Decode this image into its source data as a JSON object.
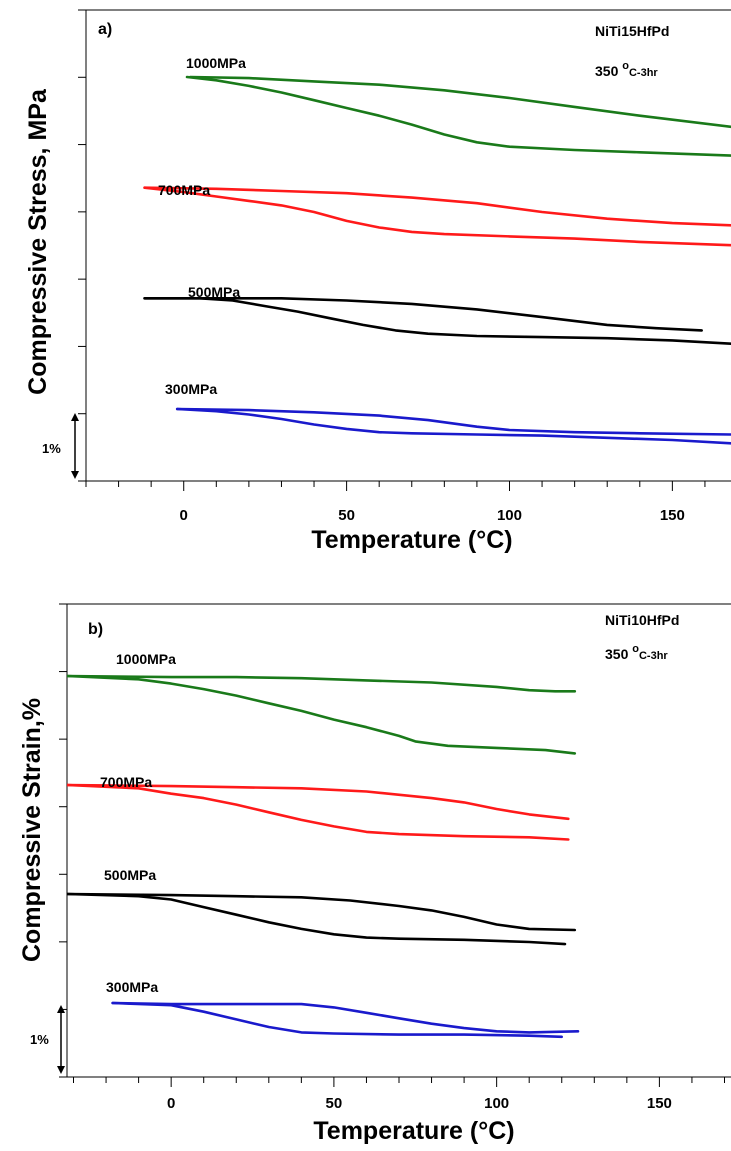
{
  "chart_data": [
    {
      "type": "line",
      "panel_label": "a)",
      "material": "NiTi15HfPd",
      "treatment": {
        "temp": "350",
        "deg": "o",
        "rest": "C-3hr"
      },
      "xlabel": "Temperature (°C)",
      "ylabel": "Compressive Stress, MPa",
      "xlim": [
        -30,
        168
      ],
      "xticks": [
        0,
        50,
        100,
        150
      ],
      "scale_bar_label": "1%",
      "series": [
        {
          "name": "1000MPa",
          "color": "#1a7a1a",
          "heating": [
            [
              2,
              90.0
            ],
            [
              20,
              89.9
            ],
            [
              40,
              89.6
            ],
            [
              60,
              89.3
            ],
            [
              80,
              88.8
            ],
            [
              100,
              88.1
            ],
            [
              120,
              87.3
            ],
            [
              140,
              86.5
            ],
            [
              168,
              85.5
            ]
          ],
          "cooling": [
            [
              1,
              90.0
            ],
            [
              10,
              89.7
            ],
            [
              20,
              89.2
            ],
            [
              30,
              88.6
            ],
            [
              40,
              87.9
            ],
            [
              50,
              87.2
            ],
            [
              60,
              86.5
            ],
            [
              70,
              85.7
            ],
            [
              80,
              84.8
            ],
            [
              90,
              84.1
            ],
            [
              100,
              83.7
            ],
            [
              120,
              83.4
            ],
            [
              140,
              83.2
            ],
            [
              168,
              82.9
            ]
          ]
        },
        {
          "name": "700MPa",
          "color": "#ff1a1a",
          "heating": [
            [
              -12,
              80.0
            ],
            [
              10,
              79.9
            ],
            [
              30,
              79.7
            ],
            [
              50,
              79.5
            ],
            [
              70,
              79.1
            ],
            [
              90,
              78.6
            ],
            [
              110,
              77.8
            ],
            [
              130,
              77.2
            ],
            [
              150,
              76.8
            ],
            [
              168,
              76.6
            ]
          ],
          "cooling": [
            [
              -12,
              80.0
            ],
            [
              0,
              79.6
            ],
            [
              10,
              79.2
            ],
            [
              20,
              78.8
            ],
            [
              30,
              78.4
            ],
            [
              40,
              77.8
            ],
            [
              50,
              77.0
            ],
            [
              60,
              76.4
            ],
            [
              70,
              76.0
            ],
            [
              80,
              75.8
            ],
            [
              100,
              75.6
            ],
            [
              120,
              75.4
            ],
            [
              140,
              75.1
            ],
            [
              168,
              74.8
            ]
          ]
        },
        {
          "name": "500MPa",
          "color": "#000000",
          "heating": [
            [
              -12,
              70.0
            ],
            [
              10,
              70.0
            ],
            [
              30,
              70.0
            ],
            [
              50,
              69.8
            ],
            [
              70,
              69.5
            ],
            [
              90,
              69.0
            ],
            [
              110,
              68.3
            ],
            [
              130,
              67.6
            ],
            [
              145,
              67.3
            ],
            [
              159,
              67.1
            ]
          ],
          "cooling": [
            [
              -12,
              70.0
            ],
            [
              5,
              70.0
            ],
            [
              15,
              69.8
            ],
            [
              25,
              69.3
            ],
            [
              35,
              68.8
            ],
            [
              45,
              68.2
            ],
            [
              55,
              67.6
            ],
            [
              65,
              67.1
            ],
            [
              75,
              66.8
            ],
            [
              90,
              66.6
            ],
            [
              110,
              66.5
            ],
            [
              130,
              66.4
            ],
            [
              150,
              66.2
            ],
            [
              168,
              65.9
            ]
          ]
        },
        {
          "name": "300MPa",
          "color": "#1a1acc",
          "heating": [
            [
              -2,
              60.0
            ],
            [
              20,
              59.9
            ],
            [
              40,
              59.7
            ],
            [
              60,
              59.4
            ],
            [
              75,
              59.0
            ],
            [
              90,
              58.4
            ],
            [
              100,
              58.1
            ],
            [
              120,
              57.9
            ],
            [
              140,
              57.8
            ],
            [
              168,
              57.7
            ]
          ],
          "cooling": [
            [
              -2,
              60.0
            ],
            [
              10,
              59.8
            ],
            [
              20,
              59.5
            ],
            [
              30,
              59.1
            ],
            [
              40,
              58.6
            ],
            [
              50,
              58.2
            ],
            [
              60,
              57.9
            ],
            [
              70,
              57.8
            ],
            [
              90,
              57.7
            ],
            [
              110,
              57.6
            ],
            [
              130,
              57.4
            ],
            [
              150,
              57.2
            ],
            [
              168,
              56.9
            ]
          ]
        }
      ]
    },
    {
      "type": "line",
      "panel_label": "b)",
      "material": "NiTi10HfPd",
      "treatment": {
        "temp": "350",
        "deg": "o",
        "rest": "C-3hr"
      },
      "xlabel": "Temperature (°C)",
      "ylabel": "Compressive Strain,%",
      "xlim": [
        -32,
        172
      ],
      "xticks": [
        0,
        50,
        100,
        150
      ],
      "scale_bar_label": "1%",
      "series": [
        {
          "name": "1000MPa",
          "color": "#1a7a1a",
          "heating": [
            [
              -32,
              90.0
            ],
            [
              0,
              89.9
            ],
            [
              20,
              89.9
            ],
            [
              40,
              89.8
            ],
            [
              60,
              89.6
            ],
            [
              80,
              89.4
            ],
            [
              100,
              89.0
            ],
            [
              110,
              88.7
            ],
            [
              118,
              88.6
            ],
            [
              124,
              88.6
            ]
          ],
          "cooling": [
            [
              -32,
              90.0
            ],
            [
              -10,
              89.7
            ],
            [
              0,
              89.3
            ],
            [
              10,
              88.8
            ],
            [
              20,
              88.2
            ],
            [
              30,
              87.5
            ],
            [
              40,
              86.8
            ],
            [
              50,
              86.0
            ],
            [
              60,
              85.3
            ],
            [
              70,
              84.5
            ],
            [
              75,
              84.0
            ],
            [
              85,
              83.6
            ],
            [
              100,
              83.4
            ],
            [
              115,
              83.2
            ],
            [
              124,
              82.9
            ]
          ]
        },
        {
          "name": "700MPa",
          "color": "#ff1a1a",
          "heating": [
            [
              -32,
              80.0
            ],
            [
              0,
              79.9
            ],
            [
              20,
              79.8
            ],
            [
              40,
              79.7
            ],
            [
              60,
              79.4
            ],
            [
              80,
              78.8
            ],
            [
              90,
              78.4
            ],
            [
              100,
              77.8
            ],
            [
              110,
              77.3
            ],
            [
              122,
              76.9
            ]
          ],
          "cooling": [
            [
              -32,
              80.0
            ],
            [
              -10,
              79.7
            ],
            [
              0,
              79.2
            ],
            [
              10,
              78.8
            ],
            [
              20,
              78.2
            ],
            [
              30,
              77.5
            ],
            [
              40,
              76.8
            ],
            [
              50,
              76.2
            ],
            [
              60,
              75.7
            ],
            [
              70,
              75.5
            ],
            [
              90,
              75.3
            ],
            [
              110,
              75.2
            ],
            [
              122,
              75.0
            ]
          ]
        },
        {
          "name": "500MPa",
          "color": "#000000",
          "heating": [
            [
              -32,
              70.0
            ],
            [
              0,
              69.9
            ],
            [
              20,
              69.8
            ],
            [
              40,
              69.7
            ],
            [
              55,
              69.4
            ],
            [
              70,
              68.9
            ],
            [
              80,
              68.5
            ],
            [
              90,
              67.9
            ],
            [
              100,
              67.2
            ],
            [
              110,
              66.8
            ],
            [
              124,
              66.7
            ]
          ],
          "cooling": [
            [
              -32,
              70.0
            ],
            [
              -10,
              69.8
            ],
            [
              0,
              69.5
            ],
            [
              10,
              68.8
            ],
            [
              20,
              68.1
            ],
            [
              30,
              67.4
            ],
            [
              40,
              66.8
            ],
            [
              50,
              66.3
            ],
            [
              60,
              66.0
            ],
            [
              70,
              65.9
            ],
            [
              90,
              65.8
            ],
            [
              110,
              65.6
            ],
            [
              121,
              65.4
            ]
          ]
        },
        {
          "name": "300MPa",
          "color": "#1a1acc",
          "heating": [
            [
              -18,
              60.0
            ],
            [
              0,
              59.9
            ],
            [
              20,
              59.9
            ],
            [
              40,
              59.9
            ],
            [
              50,
              59.6
            ],
            [
              60,
              59.1
            ],
            [
              70,
              58.6
            ],
            [
              80,
              58.1
            ],
            [
              90,
              57.7
            ],
            [
              100,
              57.4
            ],
            [
              110,
              57.3
            ],
            [
              125,
              57.4
            ]
          ],
          "cooling": [
            [
              -18,
              60.0
            ],
            [
              0,
              59.8
            ],
            [
              10,
              59.2
            ],
            [
              20,
              58.5
            ],
            [
              30,
              57.8
            ],
            [
              40,
              57.3
            ],
            [
              50,
              57.2
            ],
            [
              70,
              57.1
            ],
            [
              90,
              57.1
            ],
            [
              110,
              57.0
            ],
            [
              120,
              56.9
            ]
          ]
        }
      ]
    }
  ]
}
